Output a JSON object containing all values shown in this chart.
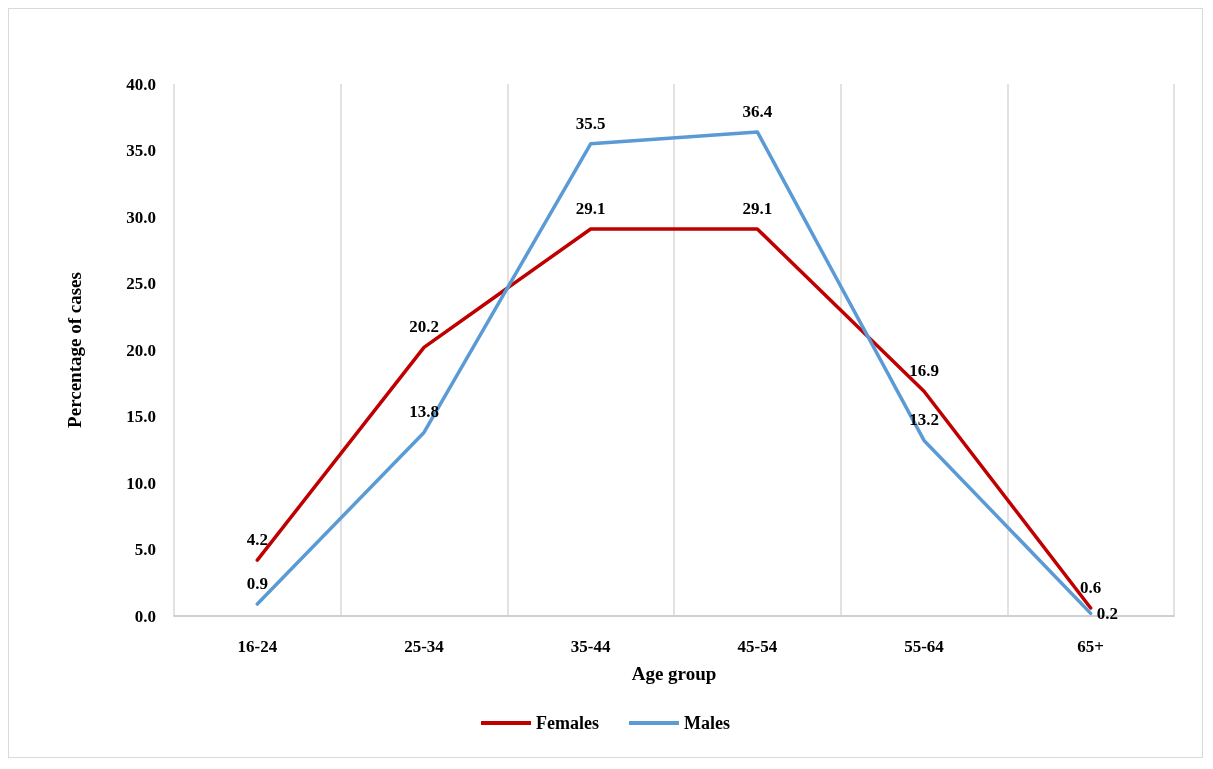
{
  "chart_data": {
    "type": "line",
    "xlabel": "Age group",
    "ylabel": "Percentage of cases",
    "categories": [
      "16-24",
      "25-34",
      "35-44",
      "45-54",
      "55-64",
      "65+"
    ],
    "series": [
      {
        "name": "Females",
        "color": "#c00000",
        "values": [
          4.2,
          20.2,
          29.1,
          29.1,
          16.9,
          0.6
        ]
      },
      {
        "name": "Males",
        "color": "#5b9bd5",
        "values": [
          0.9,
          13.8,
          35.5,
          36.4,
          13.2,
          0.2
        ]
      }
    ],
    "ylim": [
      0,
      40
    ],
    "yticks": [
      {
        "value": 0,
        "label": "0.0"
      },
      {
        "value": 5,
        "label": "5.0"
      },
      {
        "value": 10,
        "label": "10.0"
      },
      {
        "value": 15,
        "label": "15.0"
      },
      {
        "value": 20,
        "label": "20.0"
      },
      {
        "value": 25,
        "label": "25.0"
      },
      {
        "value": 30,
        "label": "30.0"
      },
      {
        "value": 35,
        "label": "35.0"
      },
      {
        "value": 40,
        "label": "40.0"
      }
    ],
    "grid": "x",
    "legend": "bottom",
    "data_labels": true,
    "marker": "none",
    "line_style": "solid"
  }
}
